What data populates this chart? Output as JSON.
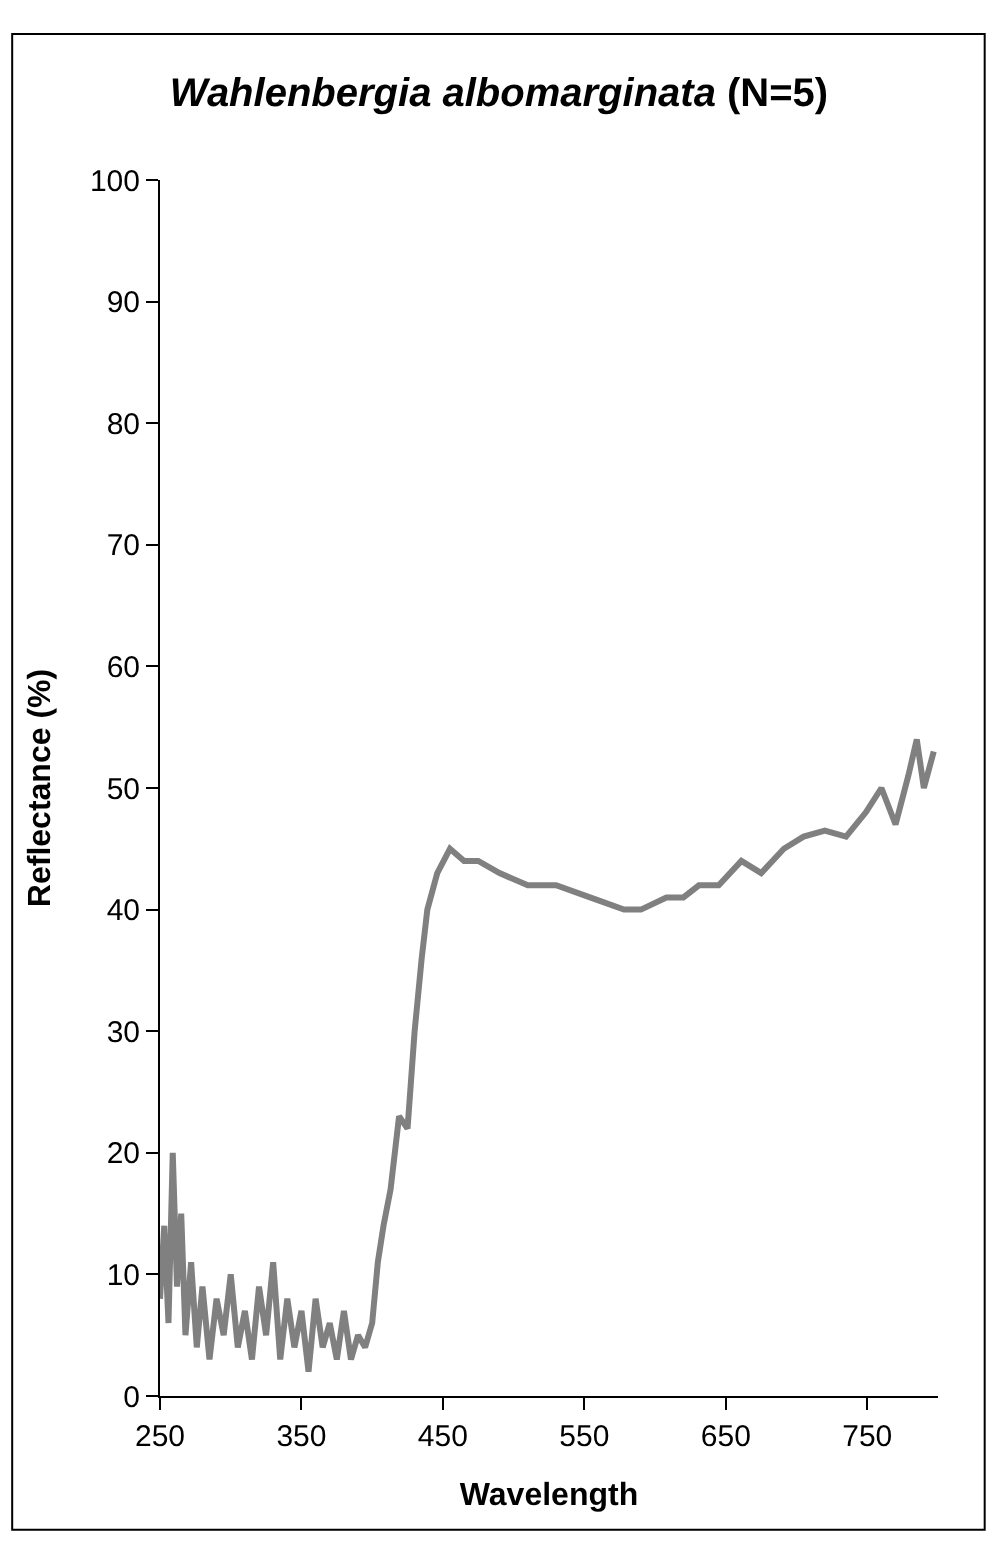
{
  "chart_data": {
    "type": "line",
    "title": "Wahlenbergia albomarginata (N=5)",
    "xlabel": "Wavelength",
    "ylabel": "Reflectance (%)",
    "x": [
      250,
      253,
      256,
      259,
      262,
      265,
      268,
      272,
      276,
      280,
      285,
      290,
      295,
      300,
      305,
      310,
      315,
      320,
      325,
      330,
      335,
      340,
      345,
      350,
      355,
      360,
      365,
      370,
      375,
      380,
      385,
      390,
      395,
      400,
      404,
      408,
      413,
      419,
      425,
      430,
      435,
      439,
      446,
      455,
      465,
      475,
      490,
      510,
      530,
      554,
      578,
      590,
      608,
      620,
      631,
      645,
      661,
      675,
      691,
      705,
      720,
      735,
      749,
      760,
      770,
      779,
      785,
      790,
      797
    ],
    "series": [
      {
        "color": "#808080",
        "values": [
          8,
          14,
          6,
          20,
          9,
          15,
          5,
          11,
          4,
          9,
          3,
          8,
          5,
          10,
          4,
          7,
          3,
          9,
          5,
          11,
          3,
          8,
          4,
          7,
          2,
          8,
          4,
          6,
          3,
          7,
          3,
          5,
          4,
          6,
          11,
          14,
          17,
          23,
          22,
          30,
          36,
          40,
          43,
          45,
          44,
          44,
          43,
          42,
          42,
          41,
          40,
          40,
          41,
          41,
          42,
          42,
          44,
          43,
          45,
          46,
          46.5,
          46,
          48,
          50,
          47,
          51,
          54,
          50,
          53
        ]
      }
    ],
    "xlim": [
      250,
      800
    ],
    "xticks": [
      250,
      350,
      450,
      550,
      650,
      750
    ],
    "ylim": [
      0,
      100
    ],
    "yticks": [
      0,
      10,
      20,
      30,
      40,
      50,
      60,
      70,
      80,
      90,
      100
    ],
    "marker": "none",
    "line_style": "solid"
  }
}
